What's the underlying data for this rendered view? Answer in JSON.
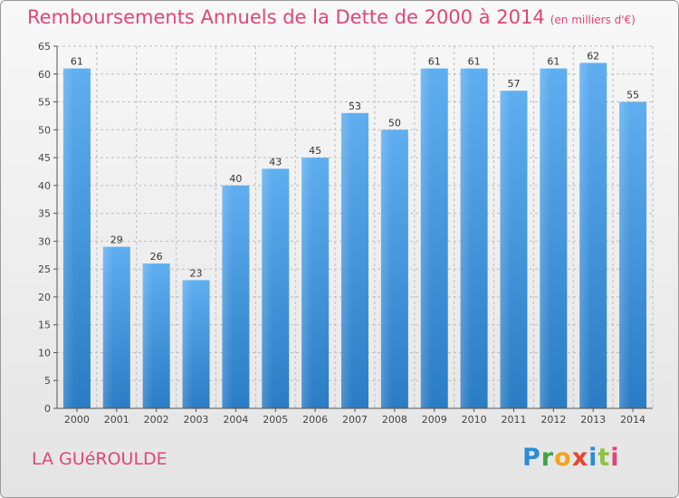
{
  "header": {
    "title": "Remboursements Annuels de la Dette de 2000 à 2014",
    "unit": "(en milliers d'€)"
  },
  "footer": {
    "commune": "LA GUéROULDE",
    "logo": "Proxiti"
  },
  "colors": {
    "title": "#e0457b",
    "bar_light": "#5eaef0",
    "bar_dark": "#2a7cc4",
    "grid": "#bdbdbd"
  },
  "chart_data": {
    "type": "bar",
    "title": "Remboursements Annuels de la Dette de 2000 à 2014",
    "subtitle": "(en milliers d'€)",
    "xlabel": "",
    "ylabel": "",
    "ylim": [
      0,
      65
    ],
    "yticks": [
      0,
      5,
      10,
      15,
      20,
      25,
      30,
      35,
      40,
      45,
      50,
      55,
      60,
      65
    ],
    "grid": true,
    "categories": [
      "2000",
      "2001",
      "2002",
      "2003",
      "2004",
      "2005",
      "2006",
      "2007",
      "2008",
      "2009",
      "2010",
      "2011",
      "2012",
      "2013",
      "2014"
    ],
    "values": [
      61,
      29,
      26,
      23,
      40,
      43,
      45,
      53,
      50,
      61,
      61,
      57,
      61,
      62,
      55
    ]
  }
}
